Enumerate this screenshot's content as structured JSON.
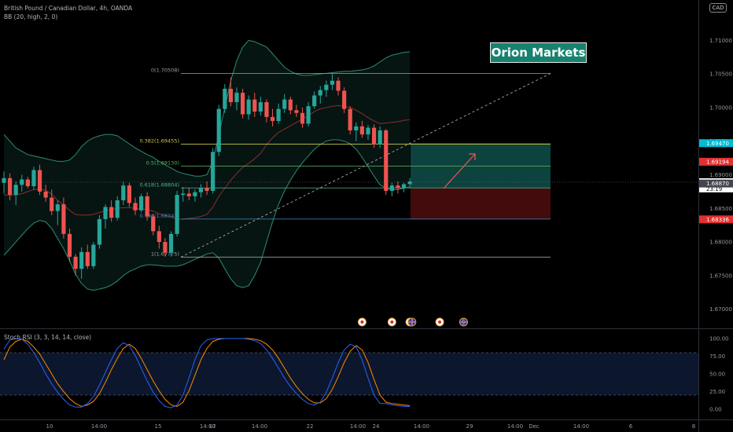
{
  "header": {
    "symbol_line": "British Pound / Canadian Dollar, 4h, OANDA",
    "bb_line": "BB (20, high, 2, 0)",
    "currency": "CAD"
  },
  "brand": "Orion Markets",
  "chart_data": {
    "type": "candlestick",
    "title": "British Pound / Canadian Dollar, 4h, OANDA",
    "ylim": [
      1.6675,
      1.7125
    ],
    "y_ticks": [
      "1.71000",
      "1.70500",
      "1.70000",
      "1.69500",
      "1.69000",
      "1.68500",
      "1.68000",
      "1.67500",
      "1.67000"
    ],
    "x_ticks": [
      "10",
      "14:00",
      "15",
      "14:00",
      "17",
      "14:00",
      "22",
      "14:00",
      "24",
      "14:00",
      "29",
      "14:00",
      "Dec",
      "14:00",
      "6",
      "8"
    ],
    "price_labels": [
      {
        "value": 1.6947,
        "text": "1.69470",
        "color": "#00bcd4"
      },
      {
        "value": 1.69194,
        "text": "1.69194",
        "color": "#e03030"
      },
      {
        "value": 1.6889,
        "text": "1.68890",
        "color": "#ffffff",
        "sub": "23:19"
      },
      {
        "value": 1.6887,
        "text": "1.68870",
        "color": "#434651"
      },
      {
        "value": 1.68336,
        "text": "1.68336",
        "color": "#e03030"
      }
    ],
    "fib_levels": [
      {
        "label": "0(1.70508)",
        "value": 1.70508,
        "color": "#9aa0a8"
      },
      {
        "label": "0.382(1.69455)",
        "value": 1.69455,
        "color": "#c9c94a"
      },
      {
        "label": "0.5(1.69130)",
        "value": 1.6913,
        "color": "#5fb85f"
      },
      {
        "label": "0.618(1.68804)",
        "value": 1.68804,
        "color": "#4db89a"
      },
      {
        "label": "0.786(1.68341)",
        "value": 1.68341,
        "color": "#3f8cc8"
      },
      {
        "label": "1(1.67775)",
        "value": 1.67775,
        "color": "#9aa0a8"
      }
    ],
    "position": {
      "entry": 1.68804,
      "target": 1.6947,
      "stop": 1.68336
    },
    "candles": [
      [
        1.6888,
        1.6905,
        1.6872,
        1.6895
      ],
      [
        1.6895,
        1.6902,
        1.6862,
        1.687
      ],
      [
        1.687,
        1.689,
        1.6855,
        1.6885
      ],
      [
        1.6885,
        1.69,
        1.6875,
        1.6893
      ],
      [
        1.6893,
        1.6897,
        1.688,
        1.6883
      ],
      [
        1.6883,
        1.6912,
        1.6878,
        1.6907
      ],
      [
        1.6907,
        1.6915,
        1.687,
        1.6875
      ],
      [
        1.6875,
        1.6885,
        1.686,
        1.6866
      ],
      [
        1.6866,
        1.6878,
        1.684,
        1.6846
      ],
      [
        1.6846,
        1.6862,
        1.6825,
        1.6856
      ],
      [
        1.6856,
        1.6866,
        1.6805,
        1.6812
      ],
      [
        1.6812,
        1.682,
        1.677,
        1.6778
      ],
      [
        1.6778,
        1.6782,
        1.675,
        1.676
      ],
      [
        1.676,
        1.6792,
        1.6745,
        1.6785
      ],
      [
        1.6785,
        1.6796,
        1.676,
        1.6764
      ],
      [
        1.6764,
        1.68,
        1.676,
        1.6796
      ],
      [
        1.6796,
        1.684,
        1.679,
        1.6834
      ],
      [
        1.6834,
        1.6856,
        1.682,
        1.6852
      ],
      [
        1.6852,
        1.6862,
        1.683,
        1.6836
      ],
      [
        1.6836,
        1.6868,
        1.6832,
        1.6862
      ],
      [
        1.6862,
        1.689,
        1.6855,
        1.6884
      ],
      [
        1.6884,
        1.6888,
        1.6852,
        1.6858
      ],
      [
        1.6858,
        1.6866,
        1.684,
        1.6847
      ],
      [
        1.6847,
        1.6872,
        1.6844,
        1.6868
      ],
      [
        1.6868,
        1.6874,
        1.6832,
        1.6838
      ],
      [
        1.6838,
        1.6842,
        1.681,
        1.6816
      ],
      [
        1.6816,
        1.6824,
        1.679,
        1.68
      ],
      [
        1.68,
        1.6806,
        1.6778,
        1.6784
      ],
      [
        1.6784,
        1.6816,
        1.6778,
        1.6812
      ],
      [
        1.6812,
        1.6876,
        1.6808,
        1.687
      ],
      [
        1.687,
        1.6882,
        1.686,
        1.6872
      ],
      [
        1.6872,
        1.688,
        1.6862,
        1.6868
      ],
      [
        1.6868,
        1.6878,
        1.686,
        1.6874
      ],
      [
        1.6874,
        1.6886,
        1.6866,
        1.688
      ],
      [
        1.688,
        1.689,
        1.687,
        1.6876
      ],
      [
        1.6876,
        1.694,
        1.6872,
        1.6934
      ],
      [
        1.6934,
        1.7004,
        1.6928,
        1.6998
      ],
      [
        1.6998,
        1.7035,
        1.6992,
        1.7028
      ],
      [
        1.7028,
        1.7045,
        1.7002,
        1.7008
      ],
      [
        1.7008,
        1.703,
        1.6996,
        1.7022
      ],
      [
        1.7022,
        1.7028,
        1.6984,
        1.699
      ],
      [
        1.699,
        1.7018,
        1.6982,
        1.7012
      ],
      [
        1.7012,
        1.7022,
        1.6986,
        1.6994
      ],
      [
        1.6994,
        1.7016,
        1.6988,
        1.7008
      ],
      [
        1.7008,
        1.7012,
        1.6978,
        1.6986
      ],
      [
        1.6986,
        1.6998,
        1.6972,
        1.698
      ],
      [
        1.698,
        1.7006,
        1.6976,
        1.6998
      ],
      [
        1.6998,
        1.702,
        1.6992,
        1.7012
      ],
      [
        1.7012,
        1.7016,
        1.699,
        1.6996
      ],
      [
        1.6996,
        1.7004,
        1.6986,
        1.6992
      ],
      [
        1.6992,
        1.7,
        1.697,
        1.6976
      ],
      [
        1.6976,
        1.7008,
        1.6972,
        1.7002
      ],
      [
        1.7002,
        1.7024,
        1.6998,
        1.7018
      ],
      [
        1.7018,
        1.7032,
        1.7006,
        1.7026
      ],
      [
        1.7026,
        1.704,
        1.7016,
        1.7034
      ],
      [
        1.7034,
        1.705,
        1.7026,
        1.704
      ],
      [
        1.704,
        1.7045,
        1.7018,
        1.7025
      ],
      [
        1.7025,
        1.703,
        1.6992,
        1.6998
      ],
      [
        1.6998,
        1.7002,
        1.696,
        1.6966
      ],
      [
        1.6966,
        1.6978,
        1.695,
        1.6972
      ],
      [
        1.6972,
        1.698,
        1.6955,
        1.696
      ],
      [
        1.696,
        1.6974,
        1.6952,
        1.697
      ],
      [
        1.697,
        1.6975,
        1.694,
        1.6945
      ],
      [
        1.6945,
        1.6972,
        1.694,
        1.6966
      ],
      [
        1.6966,
        1.6968,
        1.687,
        1.6876
      ],
      [
        1.6876,
        1.6888,
        1.6868,
        1.6884
      ],
      [
        1.6884,
        1.689,
        1.6872,
        1.688
      ],
      [
        1.688,
        1.6888,
        1.6874,
        1.6886
      ],
      [
        1.6886,
        1.6895,
        1.688,
        1.689
      ]
    ],
    "bb_upper": [
      1.696,
      1.695,
      1.694,
      1.6935,
      1.693,
      1.6928,
      1.6926,
      1.6924,
      1.6922,
      1.692,
      1.692,
      1.6922,
      1.693,
      1.6942,
      1.695,
      1.6955,
      1.6958,
      1.696,
      1.696,
      1.6958,
      1.6952,
      1.6946,
      1.694,
      1.6935,
      1.693,
      1.6926,
      1.692,
      1.6915,
      1.691,
      1.6905,
      1.6902,
      1.69,
      1.6898,
      1.6898,
      1.69,
      1.692,
      1.696,
      1.7,
      1.704,
      1.707,
      1.709,
      1.71,
      1.7098,
      1.7094,
      1.709,
      1.708,
      1.707,
      1.706,
      1.7054,
      1.705,
      1.7048,
      1.7048,
      1.7049,
      1.705,
      1.7051,
      1.7052,
      1.7053,
      1.7054,
      1.7054,
      1.7055,
      1.7056,
      1.7058,
      1.7062,
      1.7068,
      1.7074,
      1.7078,
      1.708,
      1.7082,
      1.7083
    ],
    "bb_lower": [
      1.678,
      1.679,
      1.68,
      1.681,
      1.682,
      1.6828,
      1.6832,
      1.683,
      1.682,
      1.6805,
      1.679,
      1.6772,
      1.6752,
      1.6738,
      1.673,
      1.6728,
      1.673,
      1.6732,
      1.6736,
      1.6742,
      1.675,
      1.6756,
      1.676,
      1.6764,
      1.6766,
      1.6766,
      1.6765,
      1.6764,
      1.6764,
      1.6764,
      1.6766,
      1.677,
      1.6774,
      1.6778,
      1.6782,
      1.6784,
      1.6776,
      1.676,
      1.6745,
      1.6735,
      1.6732,
      1.6735,
      1.675,
      1.677,
      1.68,
      1.683,
      1.6856,
      1.6876,
      1.6892,
      1.6906,
      1.6918,
      1.6928,
      1.6938,
      1.6945,
      1.695,
      1.6952,
      1.6952,
      1.695,
      1.6946,
      1.6938,
      1.6926,
      1.6912,
      1.6898,
      1.6885,
      1.688,
      1.6878,
      1.6878,
      1.688,
      1.6882
    ],
    "bb_basis": [
      1.687,
      1.687,
      1.687,
      1.6872,
      1.6875,
      1.6878,
      1.6879,
      1.6877,
      1.6871,
      1.6862,
      1.6855,
      1.6847,
      1.6841,
      1.684,
      1.684,
      1.6841,
      1.6844,
      1.6846,
      1.6848,
      1.685,
      1.6851,
      1.6851,
      1.685,
      1.6849,
      1.6848,
      1.6846,
      1.6842,
      1.684,
      1.6837,
      1.6834,
      1.6834,
      1.6835,
      1.6836,
      1.6838,
      1.6841,
      1.6852,
      1.6868,
      1.688,
      1.6892,
      1.6902,
      1.6911,
      1.6917,
      1.6924,
      1.6932,
      1.6945,
      1.6955,
      1.6963,
      1.6968,
      1.6973,
      1.6978,
      1.6983,
      1.6988,
      1.6994,
      1.6998,
      1.7,
      1.7002,
      1.7003,
      1.7002,
      1.7,
      1.6996,
      1.6991,
      1.6985,
      1.698,
      1.6976,
      1.6977,
      1.6978,
      1.6979,
      1.6981,
      1.6982
    ],
    "stoch_rsi": {
      "label": "Stoch RSI (3, 3, 14, 14, close)",
      "ylim": [
        0,
        100
      ],
      "y_ticks": [
        "100.00",
        "75.00",
        "50.00",
        "25.00",
        "0.00"
      ],
      "band": [
        20,
        80
      ],
      "k": [
        85,
        98,
        100,
        99,
        92,
        80,
        66,
        50,
        36,
        24,
        14,
        6,
        3,
        3,
        8,
        18,
        34,
        52,
        70,
        86,
        94,
        90,
        76,
        58,
        40,
        24,
        12,
        4,
        2,
        6,
        20,
        44,
        70,
        90,
        98,
        100,
        100,
        100,
        100,
        100,
        100,
        99,
        97,
        93,
        84,
        72,
        58,
        44,
        32,
        22,
        14,
        8,
        6,
        10,
        24,
        44,
        66,
        84,
        92,
        88,
        70,
        44,
        20,
        8,
        8,
        6,
        5,
        4,
        4
      ],
      "d": [
        70,
        88,
        96,
        99,
        96,
        88,
        78,
        64,
        50,
        36,
        25,
        15,
        8,
        4,
        6,
        11,
        22,
        38,
        56,
        72,
        86,
        92,
        86,
        72,
        56,
        40,
        26,
        14,
        6,
        4,
        10,
        26,
        48,
        70,
        86,
        96,
        99,
        100,
        100,
        100,
        100,
        100,
        99,
        97,
        92,
        84,
        72,
        58,
        44,
        32,
        22,
        14,
        9,
        9,
        15,
        28,
        46,
        66,
        82,
        90,
        84,
        66,
        42,
        20,
        10,
        8,
        7,
        6,
        5
      ]
    },
    "events": [
      {
        "type": "CA",
        "x": 60
      },
      {
        "type": "CA",
        "x": 65
      },
      {
        "type": "CA",
        "x": 68
      },
      {
        "type": "GB",
        "x": 68.35
      },
      {
        "type": "CA",
        "x": 73
      },
      {
        "type": "GB",
        "x": 77
      }
    ]
  }
}
